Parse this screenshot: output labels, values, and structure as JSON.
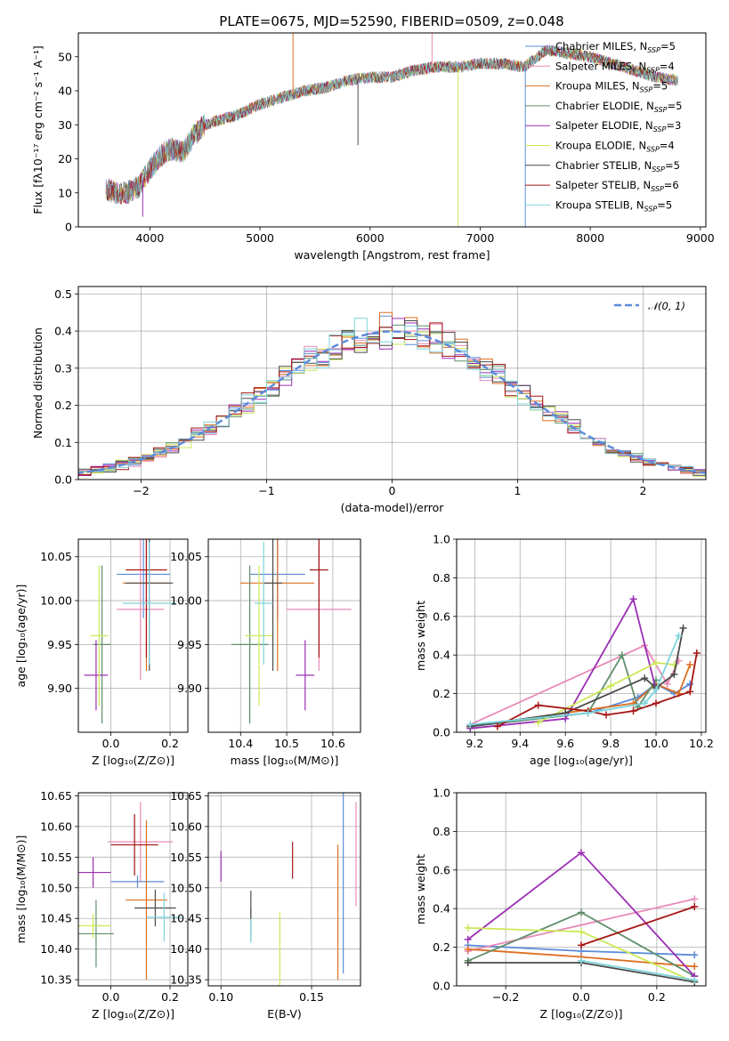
{
  "figure_title": "PLATE=0675, MJD=52590, FIBERID=0509, z=0.048",
  "colors": {
    "chabrier_miles": "#5b8bd9",
    "salpeter_miles": "#e98ab8",
    "kroupa_miles": "#dd6f23",
    "chabrier_elodie": "#5f8f6a",
    "salpeter_elodie": "#9b2fb5",
    "kroupa_elodie": "#cbe957",
    "chabrier_stelib": "#4a4a4a",
    "salpeter_stelib": "#a51515",
    "kroupa_stelib": "#7dd4dc",
    "normal": "#5b8bd9"
  },
  "chart_data": [
    {
      "id": "spectrum",
      "type": "line",
      "xlabel": "wavelength [Angstrom, rest frame]",
      "ylabel": "Flux [fλ10⁻¹⁷ erg cm⁻² s⁻¹ A⁻¹]",
      "xlim": [
        3350,
        9050
      ],
      "ylim": [
        0,
        57
      ],
      "xticks": [
        "4000",
        "5000",
        "6000",
        "7000",
        "8000",
        "9000"
      ],
      "yticks": [
        "0",
        "10",
        "20",
        "30",
        "40",
        "50"
      ],
      "grid": false,
      "legend_position": "right",
      "legend": [
        {
          "label": "Chabrier MILES, N",
          "sub": "SSP",
          "suffix": "=5",
          "color": "chabrier_miles"
        },
        {
          "label": "Salpeter MILES, N",
          "sub": "SSP",
          "suffix": "=4",
          "color": "salpeter_miles"
        },
        {
          "label": "Kroupa MILES, N",
          "sub": "SSP",
          "suffix": "=5",
          "color": "kroupa_miles"
        },
        {
          "label": "Chabrier ELODIE, N",
          "sub": "SSP",
          "suffix": "=5",
          "color": "chabrier_elodie"
        },
        {
          "label": "Salpeter ELODIE, N",
          "sub": "SSP",
          "suffix": "=3",
          "color": "salpeter_elodie"
        },
        {
          "label": "Kroupa ELODIE, N",
          "sub": "SSP",
          "suffix": "=4",
          "color": "kroupa_elodie"
        },
        {
          "label": "Chabrier STELIB, N",
          "sub": "SSP",
          "suffix": "=5",
          "color": "chabrier_stelib"
        },
        {
          "label": "Salpeter STELIB, N",
          "sub": "SSP",
          "suffix": "=6",
          "color": "salpeter_stelib"
        },
        {
          "label": "Kroupa STELIB, N",
          "sub": "SSP",
          "suffix": "=5",
          "color": "kroupa_stelib"
        }
      ],
      "continuum": {
        "x": [
          3600,
          3700,
          3800,
          3900,
          4000,
          4100,
          4200,
          4300,
          4400,
          4500,
          4600,
          4800,
          5000,
          5200,
          5400,
          5600,
          5800,
          6000,
          6200,
          6400,
          6600,
          6800,
          7000,
          7200,
          7400,
          7600,
          7800,
          8000,
          8200,
          8400,
          8600,
          8800
        ],
        "y": [
          11,
          10,
          10,
          12,
          17,
          21,
          23,
          22,
          27,
          30,
          31,
          33,
          36,
          38,
          40,
          41,
          43,
          44,
          44,
          46,
          47,
          47,
          48,
          48,
          47,
          52,
          51,
          50,
          48,
          46,
          44,
          43
        ]
      },
      "features": [
        {
          "x": 5300,
          "y": 58
        },
        {
          "x": 5890,
          "y": 24
        },
        {
          "x": 6563,
          "y": 58
        },
        {
          "x": 6800,
          "y": 0
        },
        {
          "x": 7410,
          "y": 0
        },
        {
          "x": 3935,
          "y": 3
        }
      ]
    },
    {
      "id": "residuals",
      "type": "histogram",
      "xlabel": "(data-model)/error",
      "ylabel": "Normed distribution",
      "xlim": [
        -2.5,
        2.5
      ],
      "ylim": [
        0,
        0.52
      ],
      "xticks": [
        "−2",
        "−1",
        "0",
        "1",
        "2"
      ],
      "yticks": [
        "0.0",
        "0.1",
        "0.2",
        "0.3",
        "0.4",
        "0.5"
      ],
      "grid": true,
      "legend_position": "top-right",
      "legend_label": "𝒩(0, 1)",
      "bin_width": 0.1,
      "normal": {
        "mean": 0,
        "sigma": 1
      }
    },
    {
      "id": "age_vs_Z",
      "type": "errorbar",
      "xlabel": "Z [log₁₀(Z/Z⊙)]",
      "ylabel": "age  [log₁₀(age/yr)]",
      "xlim": [
        -0.11,
        0.26
      ],
      "ylim": [
        9.85,
        10.07
      ],
      "xticks": [
        "0.0",
        "0.2"
      ],
      "yticks": [
        "9.90",
        "9.95",
        "10.00",
        "10.05"
      ],
      "grid": true,
      "points": [
        {
          "c": "chabrier_miles",
          "x": 0.11,
          "xe": 0.09,
          "y": 10.03,
          "ye": 0.05
        },
        {
          "c": "salpeter_miles",
          "x": 0.1,
          "xe": 0.08,
          "y": 9.99,
          "ye": 0.08
        },
        {
          "c": "kroupa_miles",
          "x": 0.12,
          "xe": 0.08,
          "y": 10.02,
          "ye": 0.1
        },
        {
          "c": "chabrier_elodie",
          "x": -0.03,
          "xe": 0.03,
          "y": 9.95,
          "ye": 0.09
        },
        {
          "c": "salpeter_elodie",
          "x": -0.05,
          "xe": 0.04,
          "y": 9.915,
          "ye": 0.04
        },
        {
          "c": "kroupa_elodie",
          "x": -0.04,
          "xe": 0.03,
          "y": 9.96,
          "ye": 0.08
        },
        {
          "c": "chabrier_stelib",
          "x": 0.13,
          "xe": 0.08,
          "y": 10.02,
          "ye": 0.1
        },
        {
          "c": "salpeter_stelib",
          "x": 0.12,
          "xe": 0.07,
          "y": 10.035,
          "ye": 0.1
        },
        {
          "c": "kroupa_stelib",
          "x": 0.13,
          "xe": 0.09,
          "y": 9.997,
          "ye": 0.07
        }
      ]
    },
    {
      "id": "age_vs_mass",
      "type": "errorbar",
      "xlabel": "mass [log₁₀(M/M⊙)]",
      "ylabel": "",
      "xlim": [
        10.33,
        10.66
      ],
      "ylim": [
        9.85,
        10.07
      ],
      "xticks": [
        "10.4",
        "10.5",
        "10.6"
      ],
      "yticks": [
        "9.90",
        "9.95",
        "10.00",
        "10.05"
      ],
      "grid": true,
      "points": [
        {
          "c": "chabrier_miles",
          "x": 10.48,
          "xe": 0.06,
          "y": 10.03,
          "ye": 0.05
        },
        {
          "c": "salpeter_miles",
          "x": 10.57,
          "xe": 0.07,
          "y": 9.99,
          "ye": 0.07
        },
        {
          "c": "kroupa_miles",
          "x": 10.48,
          "xe": 0.08,
          "y": 10.02,
          "ye": 0.1
        },
        {
          "c": "chabrier_elodie",
          "x": 10.42,
          "xe": 0.04,
          "y": 9.95,
          "ye": 0.09
        },
        {
          "c": "salpeter_elodie",
          "x": 10.54,
          "xe": 0.02,
          "y": 9.915,
          "ye": 0.04
        },
        {
          "c": "kroupa_elodie",
          "x": 10.44,
          "xe": 0.03,
          "y": 9.96,
          "ye": 0.08
        },
        {
          "c": "chabrier_stelib",
          "x": 10.47,
          "xe": 0.02,
          "y": 10.02,
          "ye": 0.1
        },
        {
          "c": "salpeter_stelib",
          "x": 10.57,
          "xe": 0.02,
          "y": 10.035,
          "ye": 0.1
        },
        {
          "c": "kroupa_stelib",
          "x": 10.45,
          "xe": 0.02,
          "y": 9.997,
          "ye": 0.07
        }
      ]
    },
    {
      "id": "massweight_vs_age",
      "type": "line",
      "xlabel": "age  [log₁₀(age/yr)]",
      "ylabel": "mass weight",
      "xlim": [
        9.12,
        10.22
      ],
      "ylim": [
        0,
        1.0
      ],
      "xticks": [
        "9.2",
        "9.4",
        "9.6",
        "9.8",
        "10.0",
        "10.2"
      ],
      "yticks": [
        "0.0",
        "0.2",
        "0.4",
        "0.6",
        "0.8",
        "1.0"
      ],
      "grid": true,
      "series": [
        {
          "c": "chabrier_miles",
          "x": [
            9.18,
            9.7,
            9.92,
            10.0,
            10.08,
            10.15
          ],
          "y": [
            0.03,
            0.1,
            0.18,
            0.25,
            0.2,
            0.25
          ]
        },
        {
          "c": "salpeter_miles",
          "x": [
            9.18,
            9.95,
            10.05,
            10.1
          ],
          "y": [
            0.04,
            0.45,
            0.25,
            0.37
          ]
        },
        {
          "c": "kroupa_miles",
          "x": [
            9.18,
            9.6,
            9.9,
            10.0,
            10.1,
            10.15
          ],
          "y": [
            0.03,
            0.1,
            0.15,
            0.25,
            0.2,
            0.35
          ]
        },
        {
          "c": "chabrier_elodie",
          "x": [
            9.18,
            9.7,
            9.85,
            9.92,
            10.0
          ],
          "y": [
            0.03,
            0.1,
            0.4,
            0.13,
            0.27
          ]
        },
        {
          "c": "salpeter_elodie",
          "x": [
            9.18,
            9.6,
            9.9,
            10.0
          ],
          "y": [
            0.02,
            0.07,
            0.69,
            0.22
          ]
        },
        {
          "c": "kroupa_elodie",
          "x": [
            9.48,
            9.8,
            10.0,
            10.08
          ],
          "y": [
            0.05,
            0.24,
            0.36,
            0.35
          ]
        },
        {
          "c": "chabrier_stelib",
          "x": [
            9.18,
            9.6,
            9.95,
            10.0,
            10.08,
            10.12
          ],
          "y": [
            0.03,
            0.1,
            0.28,
            0.23,
            0.3,
            0.54
          ]
        },
        {
          "c": "salpeter_stelib",
          "x": [
            9.3,
            9.48,
            9.7,
            9.78,
            9.9,
            10.0,
            10.15,
            10.18
          ],
          "y": [
            0.03,
            0.14,
            0.11,
            0.09,
            0.11,
            0.15,
            0.21,
            0.41
          ]
        },
        {
          "c": "kroupa_stelib",
          "x": [
            9.18,
            9.7,
            9.95,
            10.0,
            10.1
          ],
          "y": [
            0.04,
            0.1,
            0.15,
            0.22,
            0.5
          ]
        }
      ]
    },
    {
      "id": "mass_vs_Z",
      "type": "errorbar",
      "xlabel": "Z [log₁₀(Z/Z⊙)]",
      "ylabel": "mass [log₁₀(M/M⊙)]",
      "xlim": [
        -0.11,
        0.26
      ],
      "ylim": [
        10.34,
        10.655
      ],
      "xticks": [
        "0.0",
        "0.2"
      ],
      "yticks": [
        "10.35",
        "10.40",
        "10.45",
        "10.50",
        "10.55",
        "10.60",
        "10.65"
      ],
      "grid": true,
      "points": [
        {
          "c": "chabrier_miles",
          "x": 0.09,
          "xe": 0.09,
          "y": 10.51,
          "ye": 0.01
        },
        {
          "c": "salpeter_miles",
          "x": 0.1,
          "xe": 0.11,
          "y": 10.575,
          "ye": 0.065
        },
        {
          "c": "kroupa_miles",
          "x": 0.12,
          "xe": 0.07,
          "y": 10.48,
          "ye": 0.13
        },
        {
          "c": "chabrier_elodie",
          "x": -0.05,
          "xe": 0.06,
          "y": 10.425,
          "ye": 0.055
        },
        {
          "c": "salpeter_elodie",
          "x": -0.06,
          "xe": 0.06,
          "y": 10.525,
          "ye": 0.025
        },
        {
          "c": "kroupa_elodie",
          "x": -0.06,
          "xe": 0.06,
          "y": 10.438,
          "ye": 0.02
        },
        {
          "c": "chabrier_stelib",
          "x": 0.15,
          "xe": 0.07,
          "y": 10.467,
          "ye": 0.03
        },
        {
          "c": "salpeter_stelib",
          "x": 0.08,
          "xe": 0.08,
          "y": 10.57,
          "ye": 0.05
        },
        {
          "c": "kroupa_stelib",
          "x": 0.18,
          "xe": 0.06,
          "y": 10.452,
          "ye": 0.04
        }
      ]
    },
    {
      "id": "mass_vs_ebv",
      "type": "errorbar",
      "xlabel": "E(B-V)",
      "ylabel": "",
      "xlim": [
        0.093,
        0.177
      ],
      "ylim": [
        10.34,
        10.655
      ],
      "xticks": [
        "0.10",
        "0.15"
      ],
      "yticks": [
        "10.35",
        "10.40",
        "10.45",
        "10.50",
        "10.55",
        "10.60",
        "10.65"
      ],
      "grid": true,
      "points": [
        {
          "c": "chabrier_miles",
          "x": 0.1675,
          "xe": 0,
          "y": 10.51,
          "ye": 0.15
        },
        {
          "c": "salpeter_miles",
          "x": 0.1745,
          "xe": 0,
          "y": 10.555,
          "ye": 0.085
        },
        {
          "c": "kroupa_miles",
          "x": 0.1645,
          "xe": 0,
          "y": 10.46,
          "ye": 0.11
        },
        {
          "c": "chabrier_elodie",
          "x": 0.1165,
          "xe": 0,
          "y": 10.44,
          "ye": 0.025
        },
        {
          "c": "salpeter_elodie",
          "x": 0.1,
          "xe": 0,
          "y": 10.535,
          "ye": 0.025
        },
        {
          "c": "kroupa_elodie",
          "x": 0.1325,
          "xe": 0,
          "y": 10.4,
          "ye": 0.06
        },
        {
          "c": "chabrier_stelib",
          "x": 0.1165,
          "xe": 0,
          "y": 10.47,
          "ye": 0.025
        },
        {
          "c": "salpeter_stelib",
          "x": 0.1395,
          "xe": 0,
          "y": 10.545,
          "ye": 0.03
        },
        {
          "c": "kroupa_stelib",
          "x": 0.1165,
          "xe": 0,
          "y": 10.43,
          "ye": 0.02
        }
      ]
    },
    {
      "id": "massweight_vs_Z",
      "type": "line",
      "xlabel": "Z [log₁₀(Z/Z⊙)]",
      "ylabel": "mass weight",
      "xlim": [
        -0.33,
        0.33
      ],
      "ylim": [
        0,
        1.0
      ],
      "xticks": [
        "−0.2",
        "0.0",
        "0.2"
      ],
      "yticks": [
        "0.0",
        "0.2",
        "0.4",
        "0.6",
        "0.8",
        "1.0"
      ],
      "grid": true,
      "series": [
        {
          "c": "chabrier_miles",
          "x": [
            -0.3,
            0.0,
            0.3
          ],
          "y": [
            0.21,
            0.18,
            0.16
          ]
        },
        {
          "c": "salpeter_miles",
          "x": [
            -0.3,
            0.3
          ],
          "y": [
            0.18,
            0.45
          ]
        },
        {
          "c": "kroupa_miles",
          "x": [
            -0.3,
            0.0,
            0.3
          ],
          "y": [
            0.19,
            0.15,
            0.1
          ]
        },
        {
          "c": "chabrier_elodie",
          "x": [
            -0.3,
            0.0,
            0.3
          ],
          "y": [
            0.13,
            0.38,
            0.05
          ]
        },
        {
          "c": "salpeter_elodie",
          "x": [
            -0.3,
            0.0,
            0.3
          ],
          "y": [
            0.24,
            0.69,
            0.05
          ]
        },
        {
          "c": "kroupa_elodie",
          "x": [
            -0.3,
            0.0,
            0.3
          ],
          "y": [
            0.3,
            0.28,
            0.02
          ]
        },
        {
          "c": "chabrier_stelib",
          "x": [
            -0.3,
            0.0,
            0.3
          ],
          "y": [
            0.12,
            0.12,
            0.02
          ]
        },
        {
          "c": "salpeter_stelib",
          "x": [
            0.0,
            0.3
          ],
          "y": [
            0.21,
            0.41
          ]
        },
        {
          "c": "kroupa_stelib",
          "x": [
            0.0,
            0.3
          ],
          "y": [
            0.13,
            0.03
          ]
        }
      ]
    }
  ]
}
